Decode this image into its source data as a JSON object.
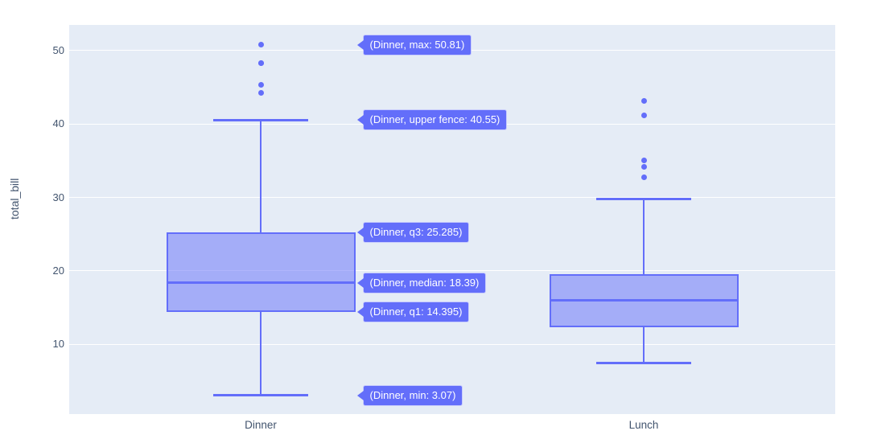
{
  "figure": {
    "background": "#ffffff",
    "plot_background": "#e5ecf6",
    "grid_color": "#ffffff",
    "axis_text_color": "#42546e",
    "accent_color": "#636efa",
    "box_fill": "rgba(99,110,250,0.5)",
    "hover_bg": "#636efa",
    "hover_text_color": "#ffffff"
  },
  "chart_data": {
    "type": "box",
    "title": "",
    "xlabel": "",
    "ylabel": "total_bill",
    "categories": [
      "Dinner",
      "Lunch"
    ],
    "yticks": [
      10,
      20,
      30,
      40,
      50
    ],
    "ylim": [
      0.5,
      53.5
    ],
    "grid": true,
    "legend": "none",
    "series": [
      {
        "name": "Dinner",
        "min": 3.07,
        "q1": 14.395,
        "median": 18.39,
        "q3": 25.285,
        "upper_fence": 40.55,
        "lower_fence": 3.07,
        "max": 50.81,
        "outliers": [
          44.3,
          45.35,
          48.27,
          48.33,
          50.81
        ]
      },
      {
        "name": "Lunch",
        "q1": 12.3,
        "median": 16.0,
        "q3": 19.6,
        "upper_fence": 29.8,
        "lower_fence": 7.5,
        "outliers": [
          32.7,
          34.2,
          35.0,
          41.2,
          43.1
        ]
      }
    ],
    "hover_labels": [
      {
        "stat": "max",
        "text": "(Dinner, max: 50.81)",
        "value": 50.81
      },
      {
        "stat": "upper-fence",
        "text": "(Dinner, upper fence: 40.55)",
        "value": 40.55
      },
      {
        "stat": "q3",
        "text": "(Dinner, q3: 25.285)",
        "value": 25.285
      },
      {
        "stat": "median",
        "text": "(Dinner, median: 18.39)",
        "value": 18.39
      },
      {
        "stat": "q1",
        "text": "(Dinner, q1: 14.395)",
        "value": 14.395
      },
      {
        "stat": "min",
        "text": "(Dinner, min: 3.07)",
        "value": 3.07
      }
    ]
  }
}
